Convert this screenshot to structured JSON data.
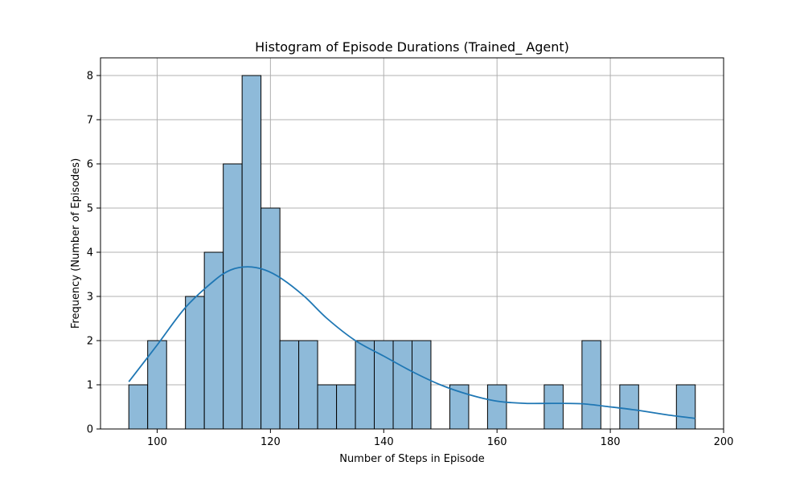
{
  "chart_data": {
    "type": "bar",
    "title": "Histogram of Episode Durations (Trained_ Agent)",
    "xlabel": "Number of Steps in Episode",
    "ylabel": "Frequency (Number of Episodes)",
    "xlim": [
      90,
      200
    ],
    "ylim": [
      0,
      8.4
    ],
    "xticks": [
      100,
      120,
      140,
      160,
      180,
      200
    ],
    "yticks": [
      0,
      1,
      2,
      3,
      4,
      5,
      6,
      7,
      8
    ],
    "grid": true,
    "bar_color": "#8ebad9",
    "edge_color": "#000000",
    "kde_color": "#1f77b4",
    "bins": [
      {
        "start": 95.0,
        "end": 98.33,
        "count": 1
      },
      {
        "start": 98.33,
        "end": 101.67,
        "count": 2
      },
      {
        "start": 101.67,
        "end": 105.0,
        "count": 0
      },
      {
        "start": 105.0,
        "end": 108.33,
        "count": 3
      },
      {
        "start": 108.33,
        "end": 111.67,
        "count": 4
      },
      {
        "start": 111.67,
        "end": 115.0,
        "count": 6
      },
      {
        "start": 115.0,
        "end": 118.33,
        "count": 8
      },
      {
        "start": 118.33,
        "end": 121.67,
        "count": 5
      },
      {
        "start": 121.67,
        "end": 125.0,
        "count": 2
      },
      {
        "start": 125.0,
        "end": 128.33,
        "count": 2
      },
      {
        "start": 128.33,
        "end": 131.67,
        "count": 1
      },
      {
        "start": 131.67,
        "end": 135.0,
        "count": 1
      },
      {
        "start": 135.0,
        "end": 138.33,
        "count": 2
      },
      {
        "start": 138.33,
        "end": 141.67,
        "count": 2
      },
      {
        "start": 141.67,
        "end": 145.0,
        "count": 2
      },
      {
        "start": 145.0,
        "end": 148.33,
        "count": 2
      },
      {
        "start": 148.33,
        "end": 151.67,
        "count": 0
      },
      {
        "start": 151.67,
        "end": 155.0,
        "count": 1
      },
      {
        "start": 155.0,
        "end": 158.33,
        "count": 0
      },
      {
        "start": 158.33,
        "end": 161.67,
        "count": 1
      },
      {
        "start": 161.67,
        "end": 165.0,
        "count": 0
      },
      {
        "start": 165.0,
        "end": 168.33,
        "count": 0
      },
      {
        "start": 168.33,
        "end": 171.67,
        "count": 1
      },
      {
        "start": 171.67,
        "end": 175.0,
        "count": 0
      },
      {
        "start": 175.0,
        "end": 178.33,
        "count": 2
      },
      {
        "start": 178.33,
        "end": 181.67,
        "count": 0
      },
      {
        "start": 181.67,
        "end": 185.0,
        "count": 1
      },
      {
        "start": 185.0,
        "end": 188.33,
        "count": 0
      },
      {
        "start": 188.33,
        "end": 191.67,
        "count": 0
      },
      {
        "start": 191.67,
        "end": 195.0,
        "count": 1
      }
    ],
    "kde": {
      "x": [
        95,
        100,
        105,
        110,
        113,
        116,
        119,
        122,
        126,
        130,
        135,
        140,
        145,
        150,
        155,
        160,
        165,
        170,
        175,
        180,
        185,
        190,
        195
      ],
      "y": [
        1.07,
        1.9,
        2.75,
        3.35,
        3.6,
        3.67,
        3.6,
        3.4,
        3.0,
        2.5,
        2.0,
        1.65,
        1.3,
        1.0,
        0.78,
        0.63,
        0.58,
        0.58,
        0.57,
        0.5,
        0.42,
        0.32,
        0.24
      ]
    }
  }
}
